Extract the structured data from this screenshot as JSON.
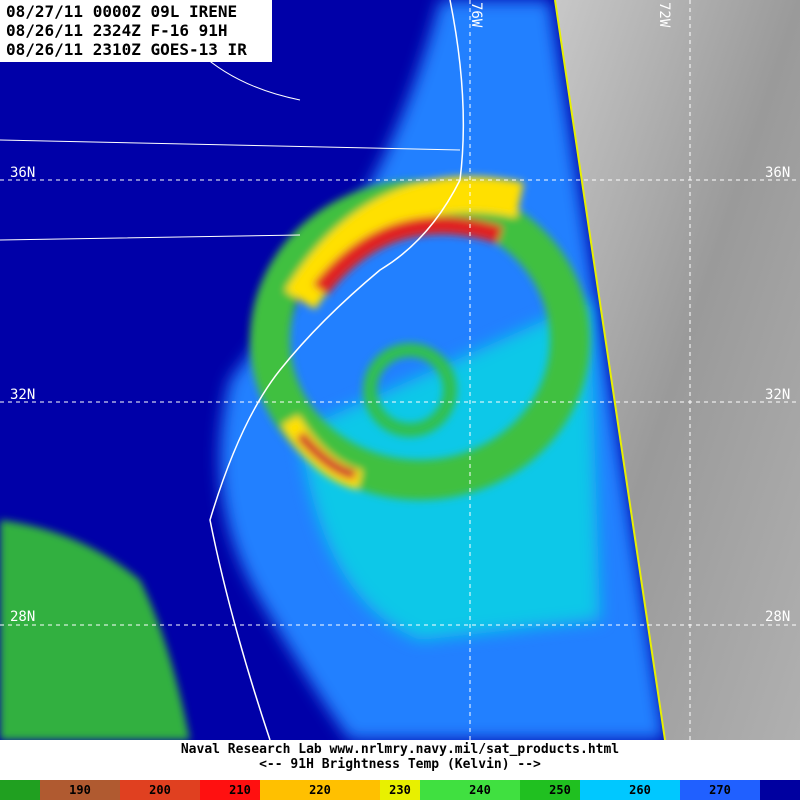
{
  "header": {
    "lines": [
      "08/27/11 0000Z 09L IRENE",
      "08/26/11 2324Z F-16 91H",
      "08/26/11 2310Z GOES-13 IR"
    ]
  },
  "map": {
    "lat_labels": [
      "36N",
      "32N",
      "28N"
    ],
    "lon_labels": [
      "76W",
      "72W"
    ]
  },
  "footer": {
    "lines": [
      "Naval Research Lab  www.nrlmry.navy.mil/sat_products.html",
      "<--   91H Brightness Temp (Kelvin)   -->"
    ]
  },
  "colorbar": {
    "ticks": [
      190,
      200,
      210,
      220,
      230,
      240,
      250,
      260,
      270
    ]
  }
}
